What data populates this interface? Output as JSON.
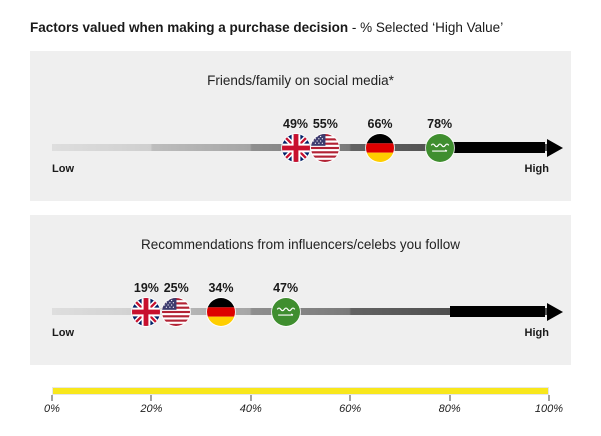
{
  "header": {
    "title_bold": "Factors valued when making a purchase decision",
    "title_rest": " - % Selected ‘High Value’"
  },
  "axis": {
    "low_label": "Low",
    "high_label": "High"
  },
  "scale": {
    "bar_color": "#f8e71c",
    "ticks": [
      "0%",
      "20%",
      "40%",
      "60%",
      "80%",
      "100%"
    ]
  },
  "chart_data": [
    {
      "type": "scatter",
      "title": "Friends/family on social media*",
      "x_axis": {
        "min": 0,
        "max": 100,
        "low_label": "Low",
        "high_label": "High"
      },
      "points": [
        {
          "country": "United Kingdom",
          "value": 49,
          "label": "49%"
        },
        {
          "country": "United States",
          "value": 55,
          "label": "55%"
        },
        {
          "country": "Germany",
          "value": 66,
          "label": "66%"
        },
        {
          "country": "Saudi Arabia",
          "value": 78,
          "label": "78%"
        }
      ]
    },
    {
      "type": "scatter",
      "title": "Recommendations from influencers/celebs you follow",
      "x_axis": {
        "min": 0,
        "max": 100,
        "low_label": "Low",
        "high_label": "High"
      },
      "points": [
        {
          "country": "United Kingdom",
          "value": 19,
          "label": "19%"
        },
        {
          "country": "United States",
          "value": 25,
          "label": "25%"
        },
        {
          "country": "Germany",
          "value": 34,
          "label": "34%"
        },
        {
          "country": "Saudi Arabia",
          "value": 47,
          "label": "47%"
        }
      ]
    }
  ]
}
